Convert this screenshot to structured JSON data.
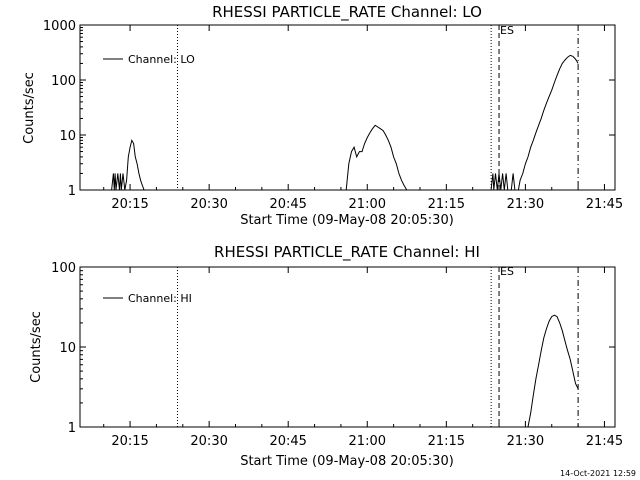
{
  "footer": {
    "timestamp": "14-Oct-2021 12:59"
  },
  "chart_data": [
    {
      "type": "line",
      "title": "RHESSI PARTICLE_RATE Channel: LO",
      "xlabel": "Start Time (09-May-08 20:05:30)",
      "ylabel": "Counts/sec",
      "y_scale": "log",
      "ylim": [
        1,
        1000
      ],
      "xlim": [
        "20:05:30",
        "21:47:00"
      ],
      "x_ticks": [
        "20:15",
        "20:30",
        "20:45",
        "21:00",
        "21:15",
        "21:30",
        "21:45"
      ],
      "y_ticks": [
        "1",
        "10",
        "100",
        "1000"
      ],
      "legend": {
        "entries": [
          "Channel: LO"
        ],
        "position": "top-left"
      },
      "markers": [
        {
          "time": "20:24:00",
          "style": "dotted"
        },
        {
          "time": "21:23:30",
          "style": "dotted"
        },
        {
          "time": "21:25:00",
          "style": "dashed",
          "label": "ES"
        },
        {
          "time": "21:40:00",
          "style": "dash-dot"
        }
      ],
      "series": [
        {
          "name": "Channel: LO",
          "x": [
            "20:11:30",
            "20:11:50",
            "20:12:00",
            "20:12:10",
            "20:12:20",
            "20:12:40",
            "20:13:00",
            "20:13:10",
            "20:13:20",
            "20:13:40",
            "20:14:00",
            "20:14:20",
            "20:14:40",
            "20:15:00",
            "20:15:20",
            "20:15:40",
            "20:16:00",
            "20:16:20",
            "20:16:40",
            "20:17:00",
            "20:17:20",
            "20:17:40",
            "20:18:00"
          ],
          "y": [
            1,
            2,
            1,
            2,
            1,
            2,
            1,
            2,
            1,
            2,
            1,
            1.5,
            4,
            6,
            8,
            7,
            4,
            3,
            2,
            1.5,
            1.2,
            1,
            1
          ]
        },
        {
          "name": "Channel: LO",
          "x": [
            "20:56:00",
            "20:56:30",
            "20:57:00",
            "20:57:30",
            "20:58:00",
            "20:58:30",
            "20:59:00",
            "20:59:30",
            "21:00:00",
            "21:00:30",
            "21:01:00",
            "21:01:30",
            "21:02:00",
            "21:02:30",
            "21:03:00",
            "21:03:30",
            "21:04:00",
            "21:04:30",
            "21:05:00",
            "21:05:30",
            "21:06:00",
            "21:06:30",
            "21:07:00",
            "21:07:30"
          ],
          "y": [
            1,
            3,
            5,
            6,
            4,
            5,
            5,
            7,
            9,
            11,
            13,
            15,
            14,
            13,
            12,
            10,
            8,
            6,
            4,
            3,
            2,
            1.5,
            1.2,
            1
          ]
        },
        {
          "name": "Channel: LO",
          "x": [
            "21:23:30",
            "21:23:50",
            "21:24:00",
            "21:24:20",
            "21:24:40",
            "21:25:00",
            "21:25:20",
            "21:25:40",
            "21:26:00",
            "21:26:20",
            "21:26:40",
            "21:27:00",
            "21:27:20",
            "21:27:40",
            "21:28:00",
            "21:28:20",
            "21:28:40",
            "21:29:00",
            "21:29:30",
            "21:30:00",
            "21:30:30",
            "21:31:00",
            "21:31:30",
            "21:32:00",
            "21:32:30",
            "21:33:00",
            "21:33:30",
            "21:34:00",
            "21:34:30",
            "21:35:00",
            "21:35:30",
            "21:36:00",
            "21:36:30",
            "21:37:00",
            "21:37:30",
            "21:38:00",
            "21:38:30",
            "21:39:00",
            "21:39:30",
            "21:40:00"
          ],
          "y": [
            1,
            2,
            1,
            2,
            1,
            2,
            1,
            2,
            1,
            2,
            1,
            1,
            1,
            2,
            1,
            1,
            1,
            1.5,
            2,
            3,
            4,
            6,
            8,
            11,
            15,
            20,
            28,
            38,
            50,
            65,
            90,
            120,
            160,
            200,
            230,
            260,
            280,
            270,
            240,
            200
          ]
        }
      ]
    },
    {
      "type": "line",
      "title": "RHESSI PARTICLE_RATE Channel: HI",
      "xlabel": "Start Time (09-May-08 20:05:30)",
      "ylabel": "Counts/sec",
      "y_scale": "log",
      "ylim": [
        1,
        100
      ],
      "xlim": [
        "20:05:30",
        "21:47:00"
      ],
      "x_ticks": [
        "20:15",
        "20:30",
        "20:45",
        "21:00",
        "21:15",
        "21:30",
        "21:45"
      ],
      "y_ticks": [
        "1",
        "10",
        "100"
      ],
      "legend": {
        "entries": [
          "Channel: HI"
        ],
        "position": "top-left"
      },
      "markers": [
        {
          "time": "20:24:00",
          "style": "dotted"
        },
        {
          "time": "21:23:30",
          "style": "dotted"
        },
        {
          "time": "21:25:00",
          "style": "dashed",
          "label": "ES"
        },
        {
          "time": "21:40:00",
          "style": "dash-dot"
        }
      ],
      "series": [
        {
          "name": "Channel: HI",
          "x": [
            "21:30:30",
            "21:31:00",
            "21:31:30",
            "21:32:00",
            "21:32:30",
            "21:33:00",
            "21:33:30",
            "21:34:00",
            "21:34:30",
            "21:35:00",
            "21:35:30",
            "21:36:00",
            "21:36:30",
            "21:37:00",
            "21:37:30",
            "21:38:00",
            "21:38:30",
            "21:39:00",
            "21:39:30",
            "21:40:00"
          ],
          "y": [
            1,
            1.5,
            2.5,
            4,
            6,
            9,
            13,
            17,
            21,
            24,
            25,
            24,
            20,
            16,
            12,
            9,
            7,
            5,
            3.5,
            3
          ]
        }
      ]
    }
  ]
}
